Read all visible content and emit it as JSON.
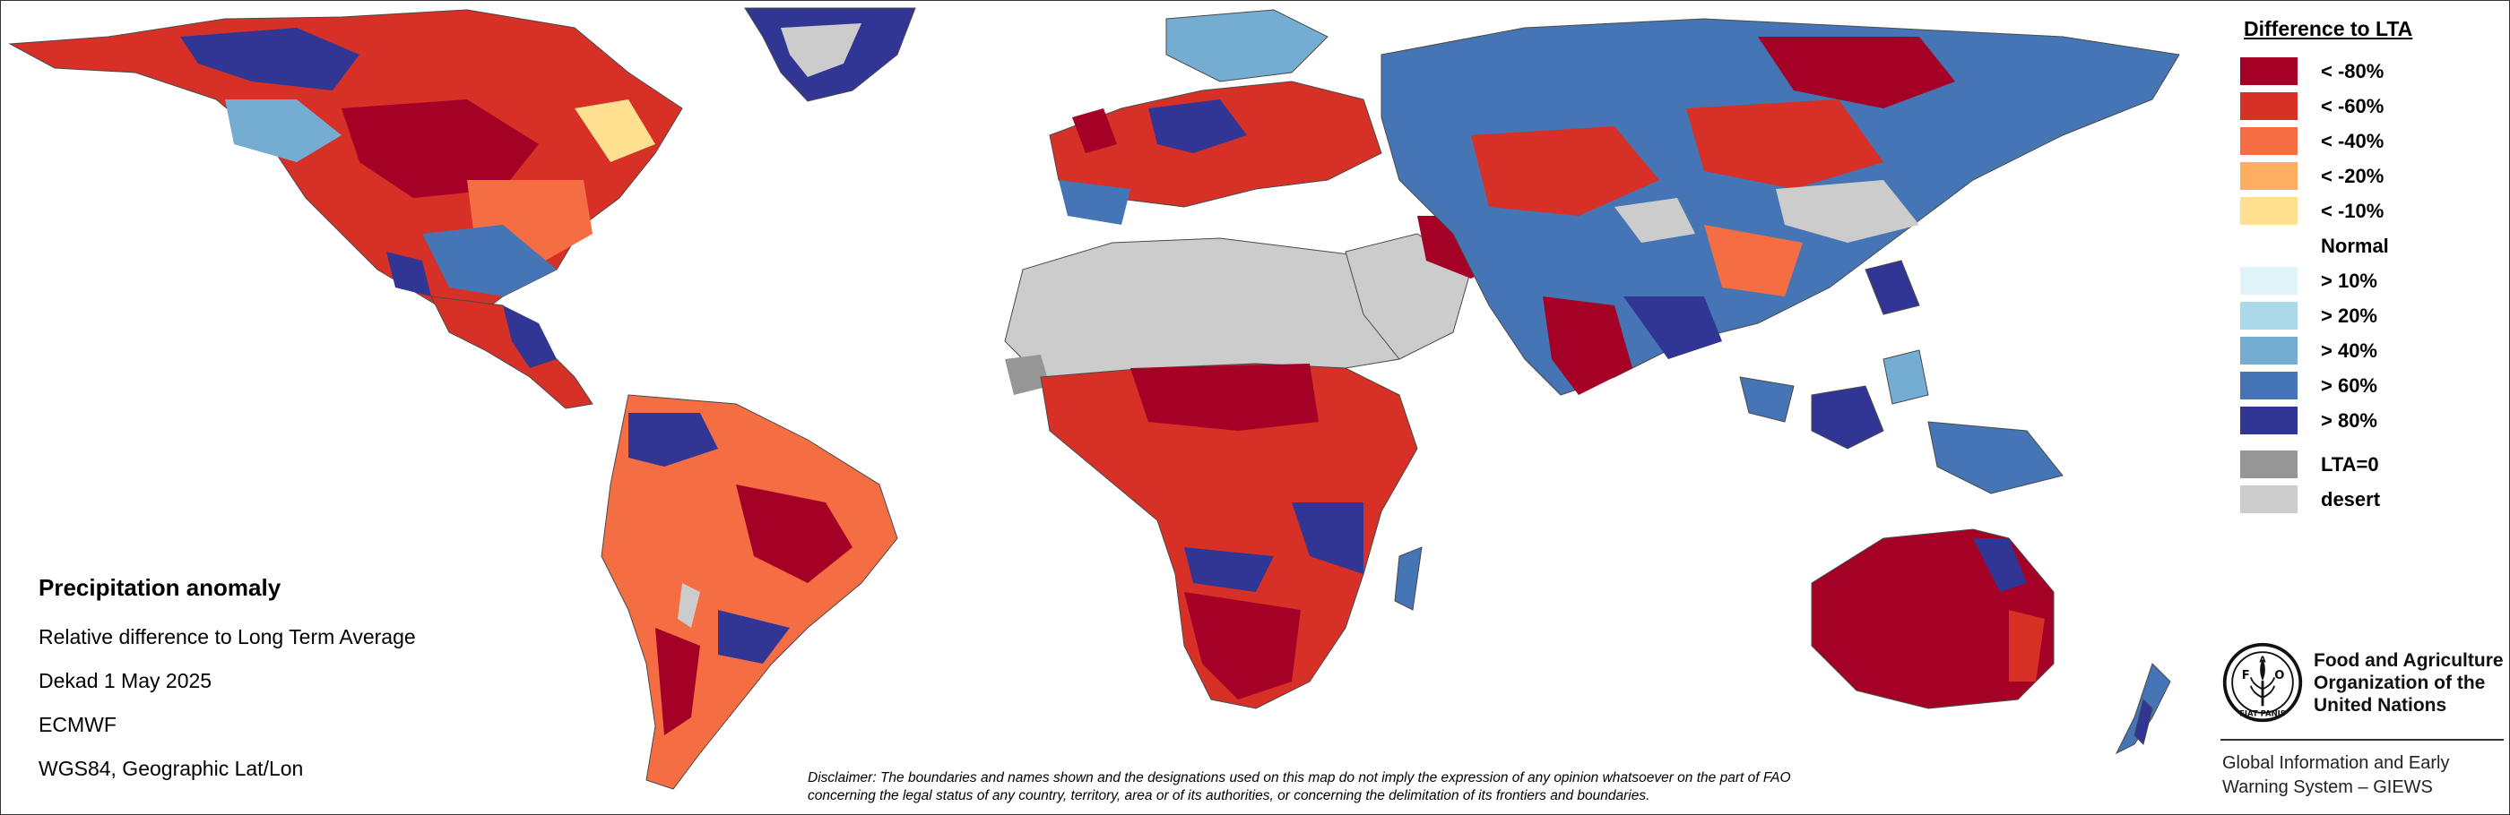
{
  "info": {
    "title": "Precipitation anomaly",
    "lines": [
      "Relative difference to Long Term Average",
      "Dekad 1 May 2025",
      "ECMWF",
      "WGS84, Geographic Lat/Lon"
    ]
  },
  "legend": {
    "title": "Difference to LTA",
    "items": [
      {
        "label": "< -80%",
        "color": "#a50026"
      },
      {
        "label": "< -60%",
        "color": "#d73027"
      },
      {
        "label": "< -40%",
        "color": "#f46d43"
      },
      {
        "label": "< -20%",
        "color": "#fdae61"
      },
      {
        "label": "< -10%",
        "color": "#fee090"
      },
      {
        "label": "Normal",
        "color": "#ffffff"
      },
      {
        "label": "> 10%",
        "color": "#e0f3f8"
      },
      {
        "label": "> 20%",
        "color": "#abd9e9"
      },
      {
        "label": "> 40%",
        "color": "#74add1"
      },
      {
        "label": "> 60%",
        "color": "#4575b4"
      },
      {
        "label": "> 80%",
        "color": "#313695"
      }
    ],
    "extra": [
      {
        "label": "LTA=0",
        "color": "#969696"
      },
      {
        "label": "desert",
        "color": "#cccccc"
      }
    ]
  },
  "logo": {
    "name_lines": [
      "Food and Agriculture",
      "Organization of the",
      "United Nations"
    ],
    "giews_lines": [
      "Global Information and Early",
      "Warning System – GIEWS"
    ]
  },
  "disclaimer": [
    "Disclaimer: The boundaries and names shown and the designations used on this map do not imply the expression of any opinion whatsoever on the part of FAO",
    "concerning the legal status of any country, territory, area or of its authorities, or concerning the delimitation of its frontiers and boundaries."
  ]
}
